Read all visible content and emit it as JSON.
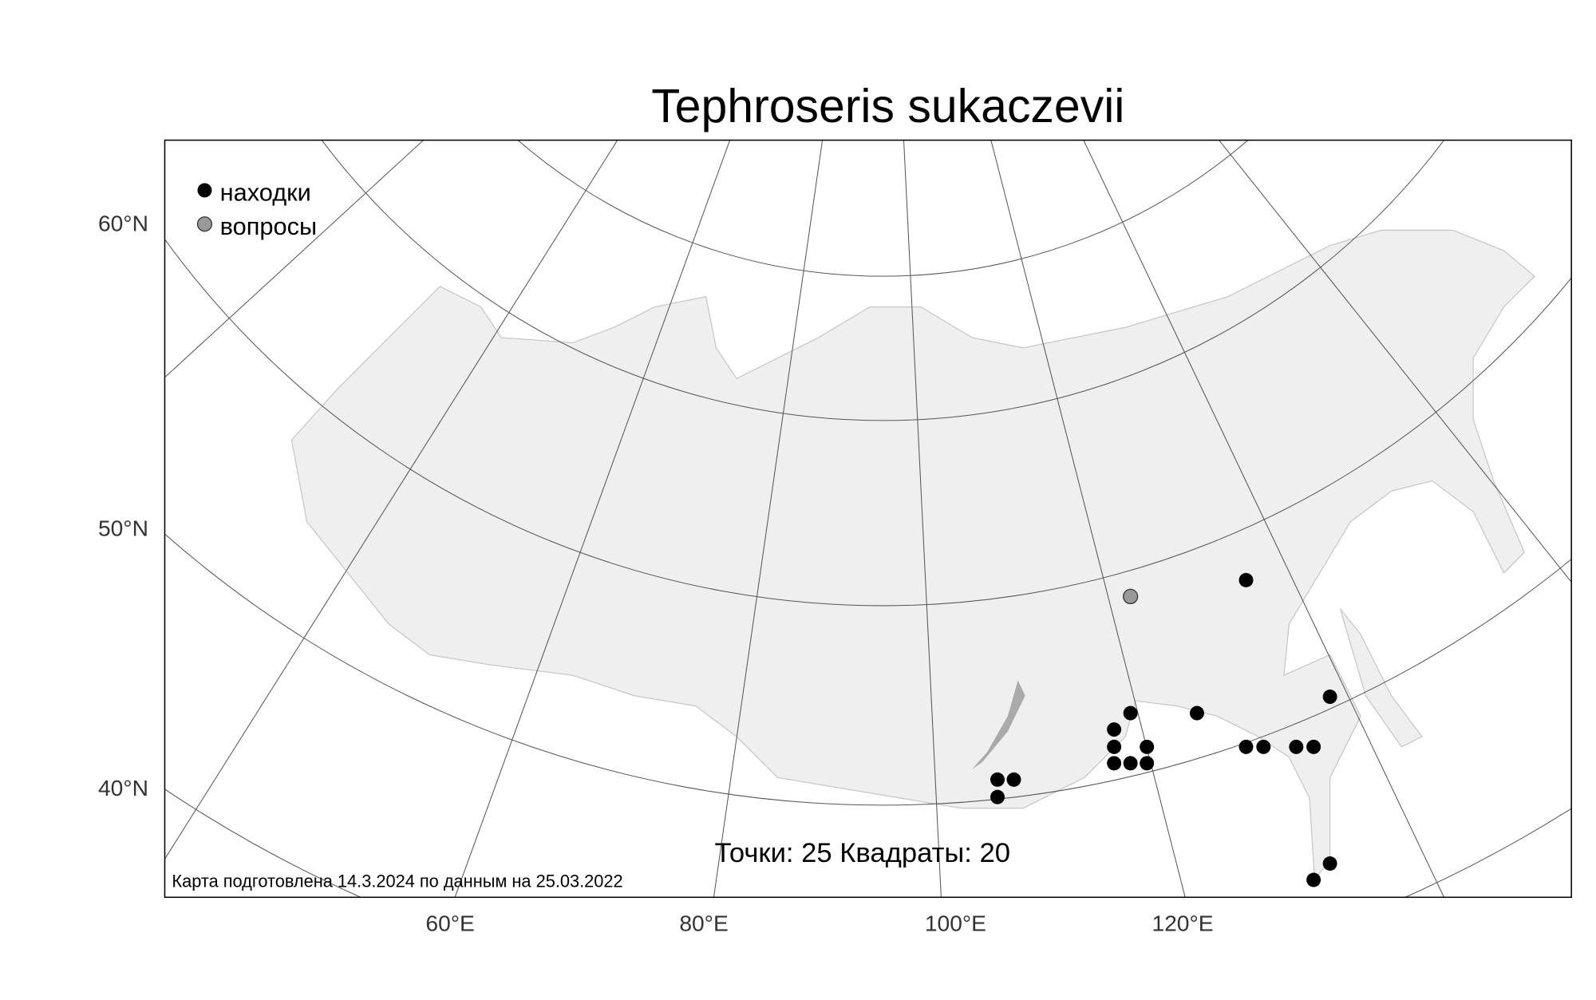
{
  "title": "Tephroseris sukaczevii",
  "legend": [
    "находки",
    "вопросы"
  ],
  "lat_labels": [
    "60°N",
    "50°N",
    "40°N"
  ],
  "lon_labels": [
    "60°E",
    "80°E",
    "100°E",
    "120°E"
  ],
  "summary": "Точки: 25 Квадраты: 20",
  "note": "Карта подготовлена 14.3.2024 по данным на 25.03.2022"
}
